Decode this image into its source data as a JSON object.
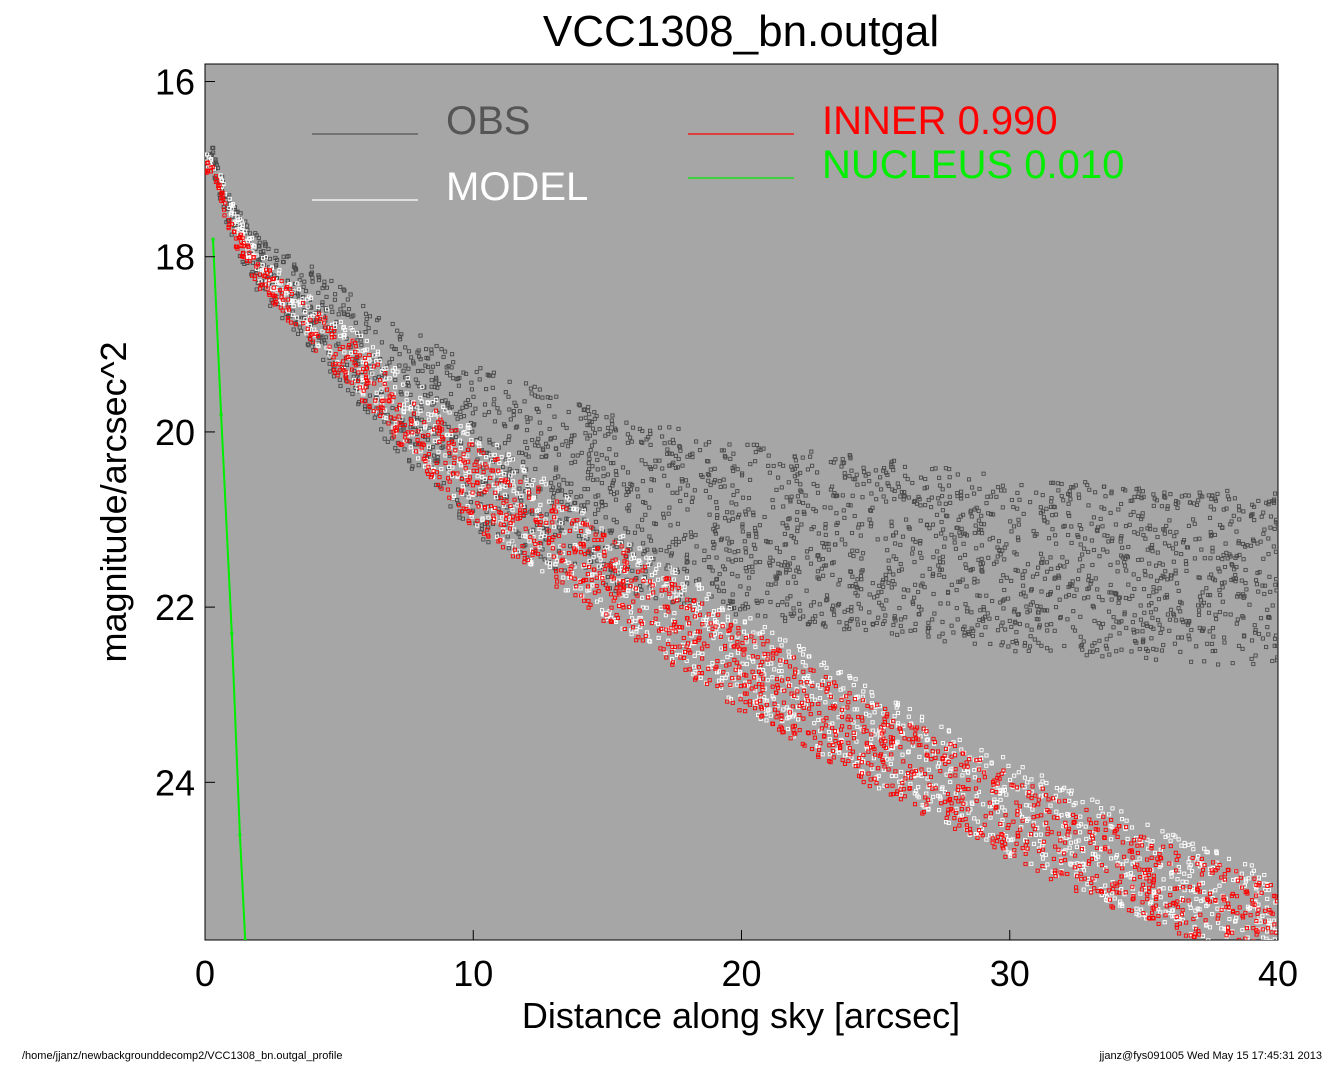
{
  "chart_data": {
    "type": "scatter",
    "title": "VCC1308_bn.outgal",
    "xlabel": "Distance along sky [arcsec]",
    "ylabel": "magnitude/arcsec^2",
    "xlim": [
      0,
      40
    ],
    "ylim": [
      25.8,
      15.8
    ],
    "y_inverted": true,
    "grid": false,
    "x_ticks": [
      0,
      10,
      20,
      30,
      40
    ],
    "y_ticks": [
      16,
      18,
      20,
      22,
      24
    ],
    "legend": {
      "placement": "top",
      "entries": [
        {
          "label": "OBS",
          "value": "",
          "color": "#555555"
        },
        {
          "label": "MODEL",
          "value": "",
          "color": "#ffffff"
        },
        {
          "label": "INNER",
          "value": "0.990",
          "color": "#ff0000"
        },
        {
          "label": "NUCLEUS",
          "value": "0.010",
          "color": "#00ee00"
        }
      ]
    },
    "colors": {
      "plot_background": "#a6a6a6",
      "obs": "#4a4a4a",
      "model": "#ffffff",
      "inner": "#ff0000",
      "nucleus": "#00ee00"
    },
    "series": [
      {
        "name": "OBS",
        "shape": "scatter",
        "x": [
          0.3,
          1,
          2,
          4,
          6,
          10,
          15,
          20,
          25,
          30,
          35,
          40
        ],
        "y": [
          16.9,
          17.6,
          18.1,
          18.6,
          19.2,
          20.2,
          20.8,
          21.1,
          21.3,
          21.5,
          21.6,
          21.7
        ]
      },
      {
        "name": "MODEL",
        "shape": "scatter",
        "x": [
          0.3,
          1,
          2,
          4,
          6,
          10,
          15,
          20,
          25,
          30,
          35,
          40
        ],
        "y": [
          16.9,
          17.5,
          18.1,
          18.7,
          19.3,
          20.5,
          21.6,
          22.6,
          23.5,
          24.3,
          25.0,
          25.6
        ]
      },
      {
        "name": "INNER",
        "value": "0.990",
        "shape": "scatter",
        "x": [
          0.3,
          1,
          2,
          4,
          6,
          10,
          15,
          20,
          25,
          30,
          35,
          40
        ],
        "y": [
          17.0,
          17.7,
          18.2,
          18.8,
          19.4,
          20.6,
          21.7,
          22.7,
          23.6,
          24.4,
          25.1,
          25.7
        ]
      },
      {
        "name": "NUCLEUS",
        "value": "0.010",
        "shape": "line",
        "x": [
          0.3,
          0.6,
          1.0,
          1.3,
          1.5
        ],
        "y": [
          17.8,
          19.8,
          22.3,
          24.6,
          25.8
        ]
      }
    ]
  },
  "footer": {
    "left": "/home/jjanz/newbackgrounddecomp2/VCC1308_bn.outgal_profile",
    "right": "jjanz@fys091005  Wed May 15 17:45:31 2013"
  }
}
